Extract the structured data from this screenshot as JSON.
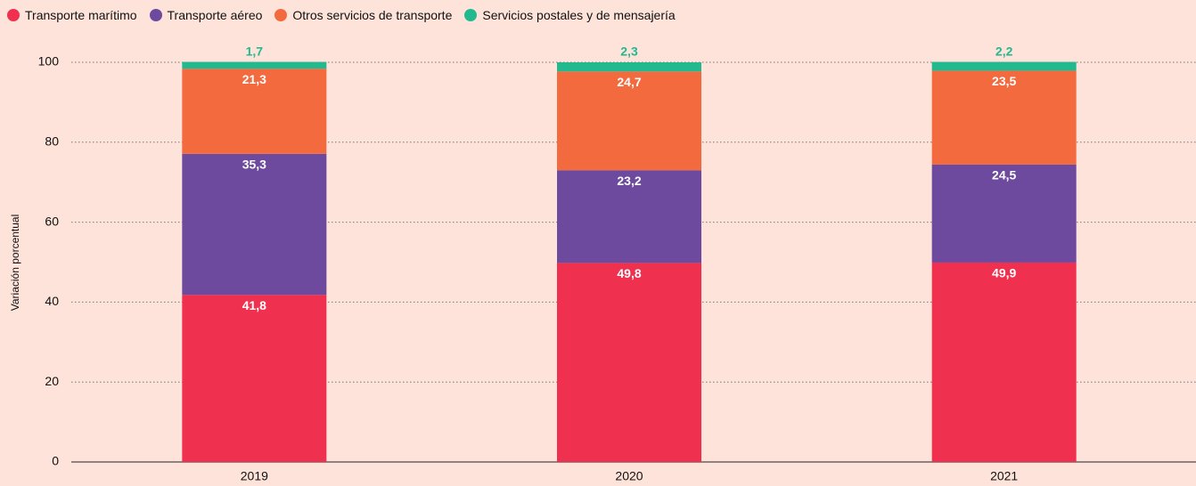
{
  "chart_data": {
    "type": "stacked_bar",
    "y_axis_label": "Variación porcentual",
    "categories": [
      "2019",
      "2020",
      "2021"
    ],
    "series": [
      {
        "name": "Transporte marítimo",
        "color": "#f0304f",
        "values": [
          41.8,
          49.8,
          49.9
        ],
        "value_labels": [
          "41,8",
          "49,8",
          "49,9"
        ]
      },
      {
        "name": "Transporte aéreo",
        "color": "#6e4a9e",
        "values": [
          35.3,
          23.2,
          24.5
        ],
        "value_labels": [
          "35,3",
          "23,2",
          "24,5"
        ]
      },
      {
        "name": "Otros servicios de transporte",
        "color": "#f26a3d",
        "values": [
          21.3,
          24.7,
          23.5
        ],
        "value_labels": [
          "21,3",
          "24,7",
          "23,5"
        ]
      },
      {
        "name": "Servicios postales y de mensajería",
        "color": "#22b98f",
        "values": [
          1.7,
          2.3,
          2.2
        ],
        "value_labels": [
          "1,7",
          "2,3",
          "2,2"
        ]
      }
    ],
    "ylim": [
      0,
      100
    ],
    "yticks": [
      0,
      20,
      40,
      60,
      80,
      100
    ],
    "grid": true,
    "legend": "top-left"
  }
}
